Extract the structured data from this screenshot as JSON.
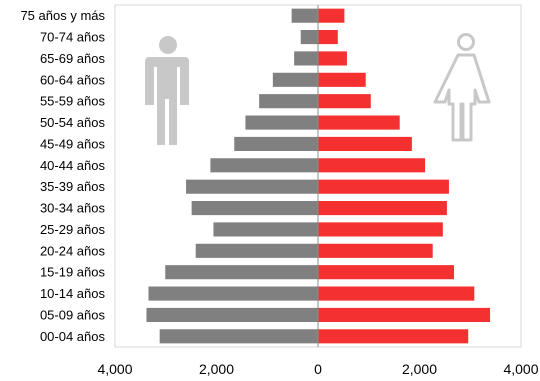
{
  "chart_data": {
    "type": "bar",
    "orientation": "horizontal",
    "layout": "population-pyramid",
    "title": "",
    "xlabel": "",
    "ylabel": "",
    "categories": [
      "00-04 años",
      "05-09 años",
      "10-14 años",
      "15-19 años",
      "20-24 años",
      "25-29 años",
      "30-34 años",
      "35-39 años",
      "40-44 años",
      "45-49 años",
      "50-54 años",
      "55-59 años",
      "60-64 años",
      "65-69 años",
      "70-74 años",
      "75 años y más"
    ],
    "series": [
      {
        "side": "left",
        "color": "#808080",
        "values": [
          3120,
          3380,
          3340,
          3010,
          2410,
          2060,
          2490,
          2600,
          2120,
          1650,
          1430,
          1160,
          890,
          470,
          340,
          520
        ]
      },
      {
        "side": "right",
        "color": "#f43030",
        "values": [
          2960,
          3390,
          3080,
          2680,
          2260,
          2460,
          2540,
          2580,
          2110,
          1850,
          1610,
          1040,
          940,
          570,
          390,
          520
        ]
      }
    ],
    "xlim": [
      -4000,
      4000
    ],
    "xticks": [
      {
        "value": -4000,
        "label": "4,000"
      },
      {
        "value": -2000,
        "label": "2,000"
      },
      {
        "value": 0,
        "label": "0"
      },
      {
        "value": 2000,
        "label": "2,000"
      },
      {
        "value": 4000,
        "label": "4,000"
      }
    ],
    "grid": false,
    "legend": "none",
    "icons": [
      {
        "name": "male-figure-icon",
        "position": "top-left",
        "color": "#c8c8c8"
      },
      {
        "name": "female-figure-icon",
        "position": "top-right",
        "color": "#c8c8c8"
      }
    ]
  }
}
